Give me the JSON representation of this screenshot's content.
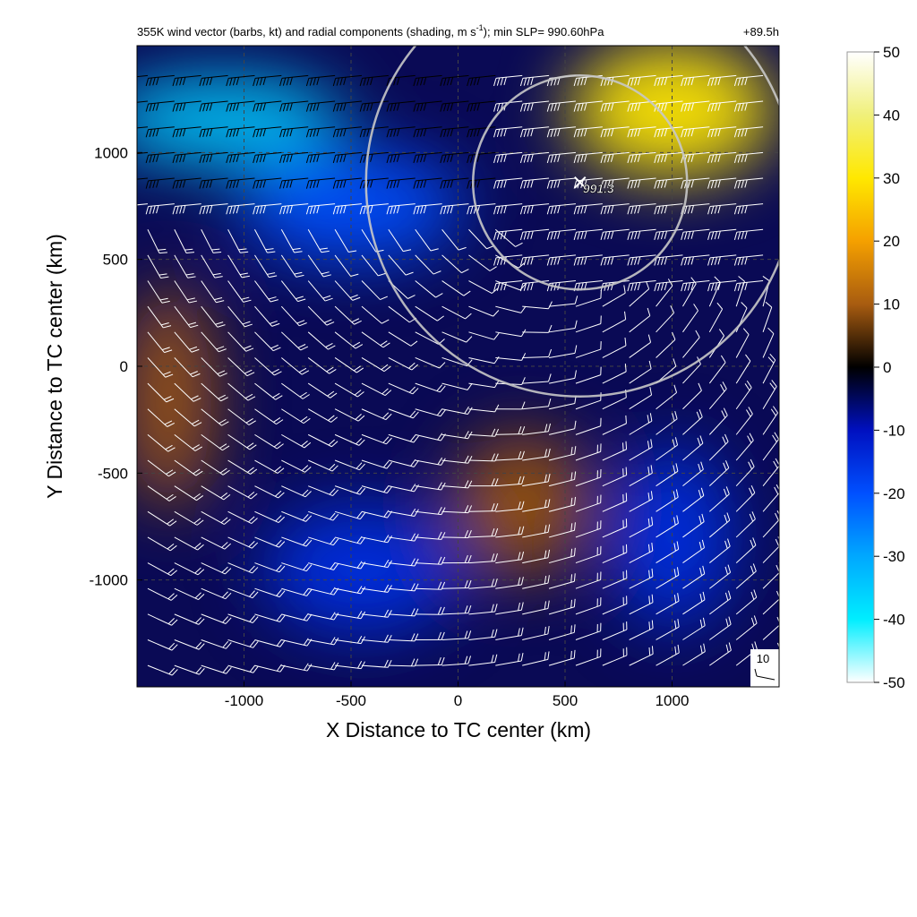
{
  "chart_data": {
    "type": "heatmap",
    "title": "355K wind vector (barbs, kt) and radial components (shading, m s",
    "title_superscript": "-1",
    "title_tail": "); min SLP= 990.60hPa",
    "forecast_hour": "+89.5h",
    "xlabel": "X Distance to TC center (km)",
    "ylabel": "Y Distance to TC center (km)",
    "xlim": [
      -1500,
      1500
    ],
    "ylim": [
      -1500,
      1500
    ],
    "xticks": [
      -1000,
      -500,
      0,
      500,
      1000
    ],
    "xtick_labels": [
      "-1000",
      "-500",
      "0",
      "500",
      "1000"
    ],
    "yticks": [
      -1000,
      -500,
      0,
      500,
      1000
    ],
    "ytick_labels": [
      "-1000",
      "-500",
      "0",
      "500",
      "1000"
    ],
    "grid": true,
    "colorbar": {
      "range": [
        -50,
        50
      ],
      "ticks": [
        50,
        40,
        30,
        20,
        10,
        0,
        -10,
        -20,
        -30,
        -40,
        -50
      ],
      "tick_labels": [
        "50",
        "40",
        "30",
        "20",
        "10",
        "0",
        "-10",
        "-20",
        "-30",
        "-40",
        "-50"
      ],
      "colors": {
        "50": "#ffffff",
        "40": "#f0f07a",
        "30": "#ffe800",
        "20": "#f5a000",
        "10": "#a85c10",
        "0": "#000000",
        "-10": "#0010c0",
        "-20": "#0050ff",
        "-30": "#00a8ff",
        "-40": "#00eeff",
        "-50": "#ffffff"
      }
    },
    "shading_regions": [
      {
        "name": "strong-inflow-northwest",
        "value": -35,
        "center": [
          -1100,
          1150
        ]
      },
      {
        "name": "inflow-north",
        "value": -20,
        "center": [
          -500,
          750
        ]
      },
      {
        "name": "outflow-northeast",
        "value": 30,
        "center": [
          1000,
          1200
        ]
      },
      {
        "name": "outflow-west",
        "value": 10,
        "center": [
          -1350,
          -150
        ]
      },
      {
        "name": "outflow-south-central",
        "value": 9,
        "center": [
          300,
          -650
        ]
      },
      {
        "name": "inflow-southwest",
        "value": -15,
        "center": [
          -450,
          -950
        ]
      },
      {
        "name": "inflow-southeast",
        "value": -15,
        "center": [
          1000,
          -800
        ]
      }
    ],
    "low_center": {
      "x": 570,
      "y": 860,
      "label": "991.3"
    },
    "range_rings": [
      {
        "center": [
          570,
          860
        ],
        "radius": 500
      },
      {
        "center": [
          570,
          860
        ],
        "radius": 1000
      }
    ],
    "reference_barb": {
      "label": "10",
      "units": "kt"
    }
  }
}
